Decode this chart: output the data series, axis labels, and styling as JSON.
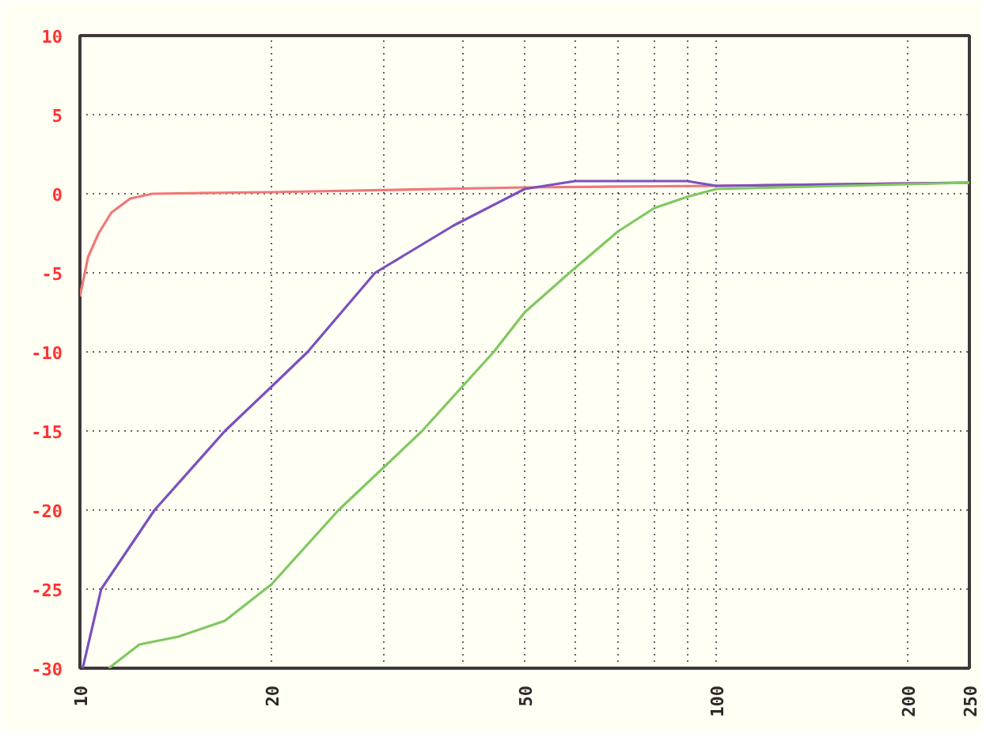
{
  "chart_data": {
    "type": "line",
    "log": "x",
    "xlim": [
      10,
      250
    ],
    "ylim": [
      -30,
      10
    ],
    "xticks": [
      10,
      20,
      {
        "value": 30,
        "label": null
      },
      {
        "value": 40,
        "label": null
      },
      50,
      {
        "value": 60,
        "label": null
      },
      {
        "value": 70,
        "label": null
      },
      {
        "value": 80,
        "label": null
      },
      {
        "value": 90,
        "label": null
      },
      100,
      200,
      250
    ],
    "yticks": [
      -30,
      -25,
      -20,
      -15,
      -10,
      -5,
      0,
      5,
      10
    ],
    "grid": true,
    "line_style": "solid",
    "series": [
      {
        "color": "#f07878",
        "x": [
          10,
          10.3,
          10.7,
          11.2,
          12,
          13,
          20,
          50,
          100,
          250
        ],
        "values": [
          -6.5,
          -4,
          -2.5,
          -1.2,
          -0.3,
          0,
          0.1,
          0.4,
          0.5,
          0.7
        ]
      },
      {
        "color": "#7a50c0",
        "x": [
          10.1,
          10.8,
          13.1,
          16.9,
          20,
          22.8,
          29.1,
          38.7,
          50,
          60,
          90,
          100,
          250
        ],
        "values": [
          -30,
          -25,
          -20,
          -15,
          -12.2,
          -10,
          -5,
          -2,
          0.3,
          0.8,
          0.8,
          0.5,
          0.7
        ]
      },
      {
        "color": "#80c860",
        "x": [
          11.1,
          12.4,
          14.3,
          16.9,
          20,
          25.5,
          34.5,
          44.7,
          50,
          58.8,
          70,
          80,
          90,
          100,
          250
        ],
        "values": [
          -30,
          -28.5,
          -28,
          -27,
          -24.7,
          -20,
          -15,
          -10,
          -7.5,
          -5,
          -2.4,
          -0.9,
          -0.2,
          0.3,
          0.7
        ]
      }
    ]
  }
}
